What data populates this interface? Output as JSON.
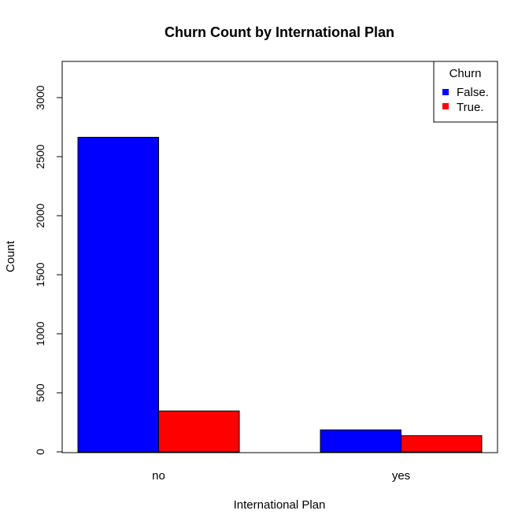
{
  "chart_data": {
    "type": "bar",
    "title": "Churn Count by International Plan",
    "xlabel": "International Plan",
    "ylabel": "Count",
    "categories": [
      "no",
      "yes"
    ],
    "series": [
      {
        "name": "False.",
        "color": "#0000ff",
        "values": [
          2664,
          186
        ]
      },
      {
        "name": "True.",
        "color": "#ff0000",
        "values": [
          346,
          137
        ]
      }
    ],
    "yticks": [
      "0",
      "500",
      "1000",
      "1500",
      "2000",
      "2500",
      "3000"
    ],
    "ylim": [
      0,
      3300
    ],
    "legend": {
      "title": "Churn",
      "position": "top-right"
    },
    "grid": false
  }
}
